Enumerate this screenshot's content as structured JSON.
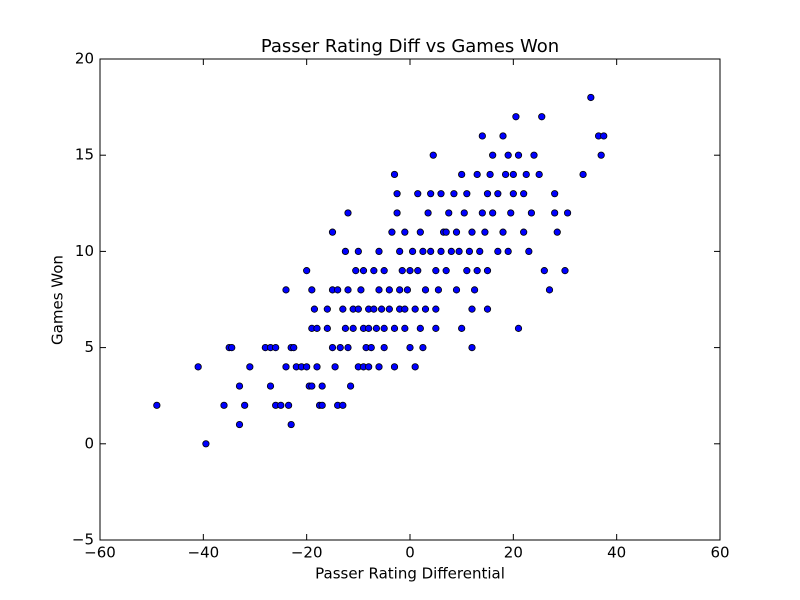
{
  "chart_data": {
    "type": "scatter",
    "title": "Passer Rating Diff vs Games Won",
    "x_label": "Passer Rating Differential",
    "y_label": "Games Won",
    "xlim": [
      -60,
      60
    ],
    "ylim": [
      -5,
      20
    ],
    "xticks": [
      {
        "value": -60,
        "label": "−60"
      },
      {
        "value": -40,
        "label": "−40"
      },
      {
        "value": -20,
        "label": "−20"
      },
      0,
      20,
      40,
      60
    ],
    "yticks": [
      {
        "value": -5,
        "label": "−5"
      },
      0,
      5,
      10,
      15,
      20
    ],
    "color": "#0000ff",
    "x": [
      -49,
      -39.5,
      -41,
      -36,
      -35,
      -34.5,
      -33,
      -33,
      -32,
      -31,
      -28,
      -27,
      -27,
      -26,
      -26,
      -25,
      -24,
      -24,
      -23.5,
      -23,
      -23,
      -22.5,
      -22,
      -21,
      -20,
      -20,
      -19.5,
      -19,
      -19,
      -19,
      -18.5,
      -18,
      -18,
      -17.5,
      -17,
      -17,
      -16,
      -16,
      -15,
      -15,
      -15,
      -14.5,
      -14,
      -14,
      -13.5,
      -13,
      -13,
      -12.5,
      -12.5,
      -12,
      -12,
      -12,
      -11.5,
      -11,
      -11,
      -10.5,
      -10,
      -10,
      -10,
      -9.5,
      -9,
      -9,
      -9,
      -8.5,
      -8,
      -8,
      -8,
      -7.5,
      -7,
      -7,
      -6.5,
      -6,
      -6,
      -6,
      -5.5,
      -5,
      -5,
      -5,
      -4,
      -4,
      -3.5,
      -3,
      -3,
      -3,
      -2.5,
      -2.5,
      -2,
      -2,
      -2,
      -1.5,
      -1,
      -1,
      -1,
      -0.5,
      0,
      0,
      0.5,
      1,
      1,
      1.5,
      1.5,
      2,
      2,
      2.5,
      2.5,
      3,
      3,
      3.5,
      4,
      4,
      4.5,
      5,
      5,
      5,
      5.5,
      6,
      6,
      6.5,
      7,
      7,
      7.5,
      8,
      8.5,
      9,
      9,
      9.5,
      10,
      10,
      10.5,
      11,
      11,
      11.5,
      12,
      12,
      12,
      12.5,
      13,
      13,
      13.5,
      14,
      14,
      14.5,
      15,
      15,
      15,
      15.5,
      16,
      16,
      17,
      17,
      18,
      18,
      18.5,
      19,
      19,
      19.5,
      20,
      20,
      20.5,
      21,
      21,
      22,
      22,
      22.5,
      23,
      23.5,
      24,
      25,
      25.5,
      26,
      27,
      28,
      28,
      28.5,
      30,
      30.5,
      33.5,
      35,
      36.5,
      37,
      37.5
    ],
    "values": [
      2,
      0,
      4,
      2,
      5,
      5,
      3,
      1,
      2,
      4,
      5,
      3,
      5,
      2,
      5,
      2,
      4,
      8,
      2,
      5,
      1,
      5,
      4,
      4,
      4,
      9,
      3,
      3,
      6,
      8,
      7,
      4,
      6,
      2,
      3,
      2,
      7,
      6,
      5,
      8,
      11,
      4,
      8,
      2,
      5,
      2,
      7,
      6,
      10,
      5,
      8,
      12,
      3,
      7,
      6,
      9,
      4,
      10,
      7,
      8,
      6,
      4,
      9,
      5,
      4,
      6,
      7,
      5,
      7,
      9,
      6,
      4,
      10,
      8,
      7,
      6,
      9,
      5,
      7,
      8,
      11,
      14,
      4,
      6,
      12,
      13,
      8,
      10,
      7,
      9,
      6,
      11,
      7,
      8,
      9,
      5,
      10,
      7,
      4,
      9,
      13,
      6,
      11,
      5,
      10,
      8,
      7,
      12,
      10,
      13,
      15,
      9,
      6,
      7,
      8,
      13,
      10,
      11,
      11,
      9,
      12,
      10,
      13,
      8,
      11,
      10,
      14,
      6,
      12,
      9,
      13,
      10,
      5,
      7,
      11,
      8,
      14,
      9,
      10,
      16,
      12,
      11,
      9,
      7,
      13,
      14,
      12,
      15,
      10,
      13,
      16,
      11,
      14,
      15,
      10,
      12,
      13,
      14,
      17,
      15,
      6,
      13,
      11,
      14,
      10,
      12,
      15,
      14,
      17,
      9,
      8,
      13,
      12,
      11,
      9,
      12,
      14,
      18,
      16,
      15,
      16
    ]
  }
}
